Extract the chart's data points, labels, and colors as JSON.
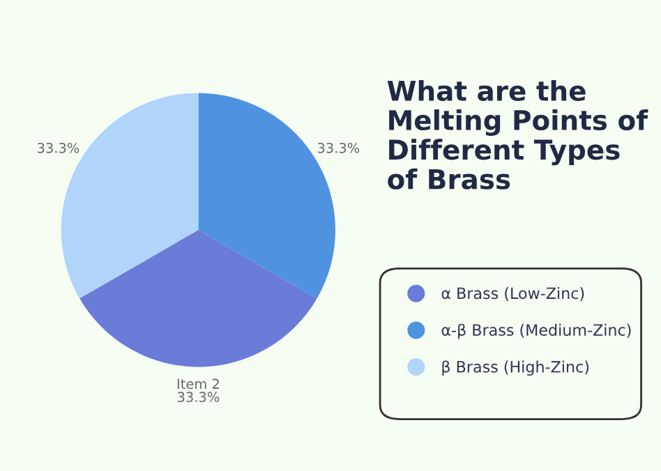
{
  "chart_data": {
    "type": "pie",
    "title": "What are the Melting Points of Different Types of Brass",
    "categories": [
      "α Brass (Low-Zinc)",
      "α-β Brass (Medium-Zinc)",
      "β Brass (High-Zinc)"
    ],
    "values": [
      33.3,
      33.3,
      33.3
    ],
    "colors": [
      "#6a7bd8",
      "#4f93e0",
      "#b0d4fa"
    ],
    "value_labels": [
      "Item 2\n33.3%",
      "33.3%",
      "33.3%"
    ],
    "legend": "right"
  }
}
